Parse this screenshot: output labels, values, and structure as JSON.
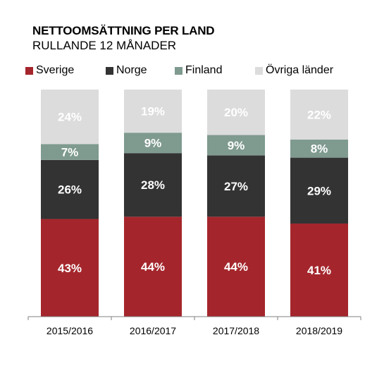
{
  "chart_data": {
    "type": "bar",
    "stacked": true,
    "normalized": true,
    "title": "NETTOOMSÄTTNING PER LAND",
    "subtitle": "RULLANDE 12 MÅNADER",
    "categories": [
      "2015/2016",
      "2016/2017",
      "2017/2018",
      "2018/2019"
    ],
    "series": [
      {
        "name": "Sverige",
        "color": "#a4262c",
        "label_color": "#ffffff",
        "values": [
          43,
          44,
          44,
          41
        ]
      },
      {
        "name": "Norge",
        "color": "#333333",
        "label_color": "#ffffff",
        "values": [
          26,
          28,
          27,
          29
        ]
      },
      {
        "name": "Finland",
        "color": "#7f9a8f",
        "label_color": "#ffffff",
        "values": [
          7,
          9,
          9,
          8
        ]
      },
      {
        "name": "Övriga länder",
        "color": "#dcdcdc",
        "label_color": "#ffffff",
        "values": [
          24,
          19,
          20,
          22
        ]
      }
    ],
    "value_suffix": "%",
    "legend_position": "top",
    "grid": false
  }
}
